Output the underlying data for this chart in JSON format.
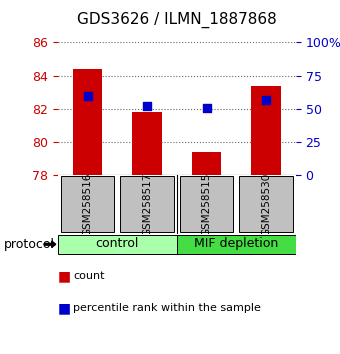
{
  "title": "GDS3626 / ILMN_1887868",
  "samples": [
    "GSM258516",
    "GSM258517",
    "GSM258515",
    "GSM258530"
  ],
  "bar_values": [
    84.4,
    81.8,
    79.4,
    83.4
  ],
  "percentile_pct": [
    60,
    52,
    51,
    57
  ],
  "ylim": [
    78,
    86
  ],
  "yticks": [
    78,
    80,
    82,
    84,
    86
  ],
  "right_yticks": [
    0,
    25,
    50,
    75,
    100
  ],
  "right_yticklabels": [
    "0",
    "25",
    "50",
    "75",
    "100%"
  ],
  "bar_color": "#cc0000",
  "dot_color": "#0000cc",
  "bar_width": 0.5,
  "groups": [
    {
      "label": "control",
      "indices": [
        0,
        1
      ],
      "color": "#aaffaa"
    },
    {
      "label": "MIF depletion",
      "indices": [
        2,
        3
      ],
      "color": "#44dd44"
    }
  ],
  "protocol_label": "protocol",
  "legend_count_label": "count",
  "legend_pct_label": "percentile rank within the sample",
  "sample_box_color": "#c0c0c0",
  "background_color": "#ffffff",
  "axis_left_color": "#cc0000",
  "axis_right_color": "#0000cc"
}
